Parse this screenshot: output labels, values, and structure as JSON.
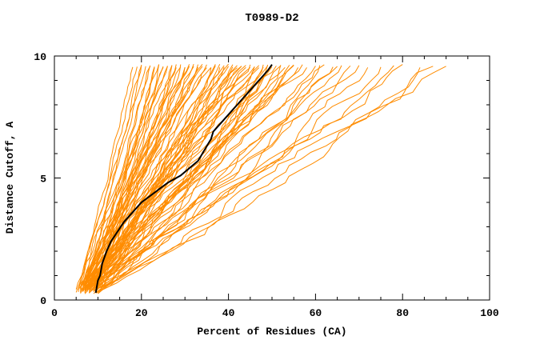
{
  "chart_data": {
    "type": "line",
    "title": "T0989-D2",
    "xlabel": "Percent of Residues (CA)",
    "ylabel": "Distance Cutoff, A",
    "xlim": [
      0,
      100
    ],
    "ylim": [
      0,
      10
    ],
    "x_major_ticks": [
      0,
      20,
      40,
      60,
      80,
      100
    ],
    "x_minor_step": 5,
    "y_major_ticks": [
      0,
      5,
      10
    ],
    "y_minor_step": 1,
    "grid": false,
    "legend_position": "none",
    "colors": {
      "prediction": "#ff8c00",
      "reference": "#000000",
      "frame": "#000000"
    },
    "seed": 1337,
    "prediction_lines": [
      [
        5,
        18
      ],
      [
        6,
        19
      ],
      [
        6.5,
        20
      ],
      [
        7,
        20
      ],
      [
        5.5,
        21
      ],
      [
        8,
        22
      ],
      [
        6,
        22
      ],
      [
        7,
        23
      ],
      [
        9,
        23
      ],
      [
        6.5,
        24
      ],
      [
        8,
        24
      ],
      [
        5,
        25
      ],
      [
        7,
        25
      ],
      [
        9.5,
        26
      ],
      [
        6,
        26
      ],
      [
        8,
        27
      ],
      [
        7,
        27
      ],
      [
        10,
        28
      ],
      [
        6,
        28
      ],
      [
        8.5,
        29
      ],
      [
        7,
        29
      ],
      [
        9,
        30
      ],
      [
        5.5,
        30
      ],
      [
        7.5,
        31
      ],
      [
        8,
        31
      ],
      [
        6,
        32
      ],
      [
        9,
        32
      ],
      [
        7,
        33
      ],
      [
        10,
        33
      ],
      [
        6.5,
        34
      ],
      [
        8,
        34
      ],
      [
        7,
        35
      ],
      [
        9,
        35
      ],
      [
        5.5,
        36
      ],
      [
        8,
        36
      ],
      [
        6.5,
        37
      ],
      [
        9.5,
        37
      ],
      [
        7,
        38
      ],
      [
        8,
        38
      ],
      [
        6,
        39
      ],
      [
        9,
        39
      ],
      [
        7.5,
        40
      ],
      [
        8.5,
        40
      ],
      [
        6,
        41
      ],
      [
        10,
        41
      ],
      [
        7,
        42
      ],
      [
        8,
        42
      ],
      [
        9,
        43
      ],
      [
        6.5,
        43
      ],
      [
        7.5,
        44
      ],
      [
        8,
        44
      ],
      [
        9.5,
        45
      ],
      [
        6,
        45
      ],
      [
        7,
        46
      ],
      [
        8.5,
        46
      ],
      [
        9,
        47
      ],
      [
        7,
        47
      ],
      [
        8,
        48
      ],
      [
        6.5,
        48
      ],
      [
        9,
        49
      ],
      [
        7.5,
        49
      ],
      [
        8,
        50
      ],
      [
        10,
        50
      ],
      [
        7,
        51
      ],
      [
        8.5,
        52
      ],
      [
        9,
        52
      ],
      [
        7,
        53
      ],
      [
        8,
        54
      ],
      [
        9.5,
        55
      ],
      [
        7.5,
        55
      ],
      [
        8,
        56
      ],
      [
        9,
        57
      ],
      [
        10,
        58
      ],
      [
        8.5,
        60
      ],
      [
        9,
        61
      ],
      [
        10.5,
        62
      ],
      [
        8,
        64
      ],
      [
        9.5,
        65
      ],
      [
        10,
        66
      ],
      [
        9,
        68
      ],
      [
        10,
        70
      ],
      [
        9,
        72
      ],
      [
        10.5,
        75
      ],
      [
        9.5,
        78
      ],
      [
        10,
        80
      ],
      [
        11,
        84
      ],
      [
        10,
        87
      ],
      [
        11,
        90
      ]
    ],
    "black_line": [
      [
        9.5,
        0.3
      ],
      [
        10,
        0.8
      ],
      [
        10.5,
        1.0
      ],
      [
        11,
        1.5
      ],
      [
        12,
        2.0
      ],
      [
        13,
        2.4
      ],
      [
        14.5,
        2.8
      ],
      [
        16,
        3.2
      ],
      [
        18,
        3.6
      ],
      [
        20,
        4.0
      ],
      [
        23,
        4.4
      ],
      [
        26,
        4.8
      ],
      [
        29,
        5.1
      ],
      [
        31,
        5.4
      ],
      [
        33,
        5.7
      ],
      [
        34,
        6.0
      ],
      [
        35,
        6.3
      ],
      [
        36,
        6.6
      ],
      [
        36.5,
        6.9
      ],
      [
        38,
        7.2
      ],
      [
        40,
        7.6
      ],
      [
        42,
        8.0
      ],
      [
        44,
        8.4
      ],
      [
        46,
        8.8
      ],
      [
        47.5,
        9.1
      ],
      [
        49,
        9.4
      ],
      [
        50,
        9.65
      ]
    ]
  }
}
